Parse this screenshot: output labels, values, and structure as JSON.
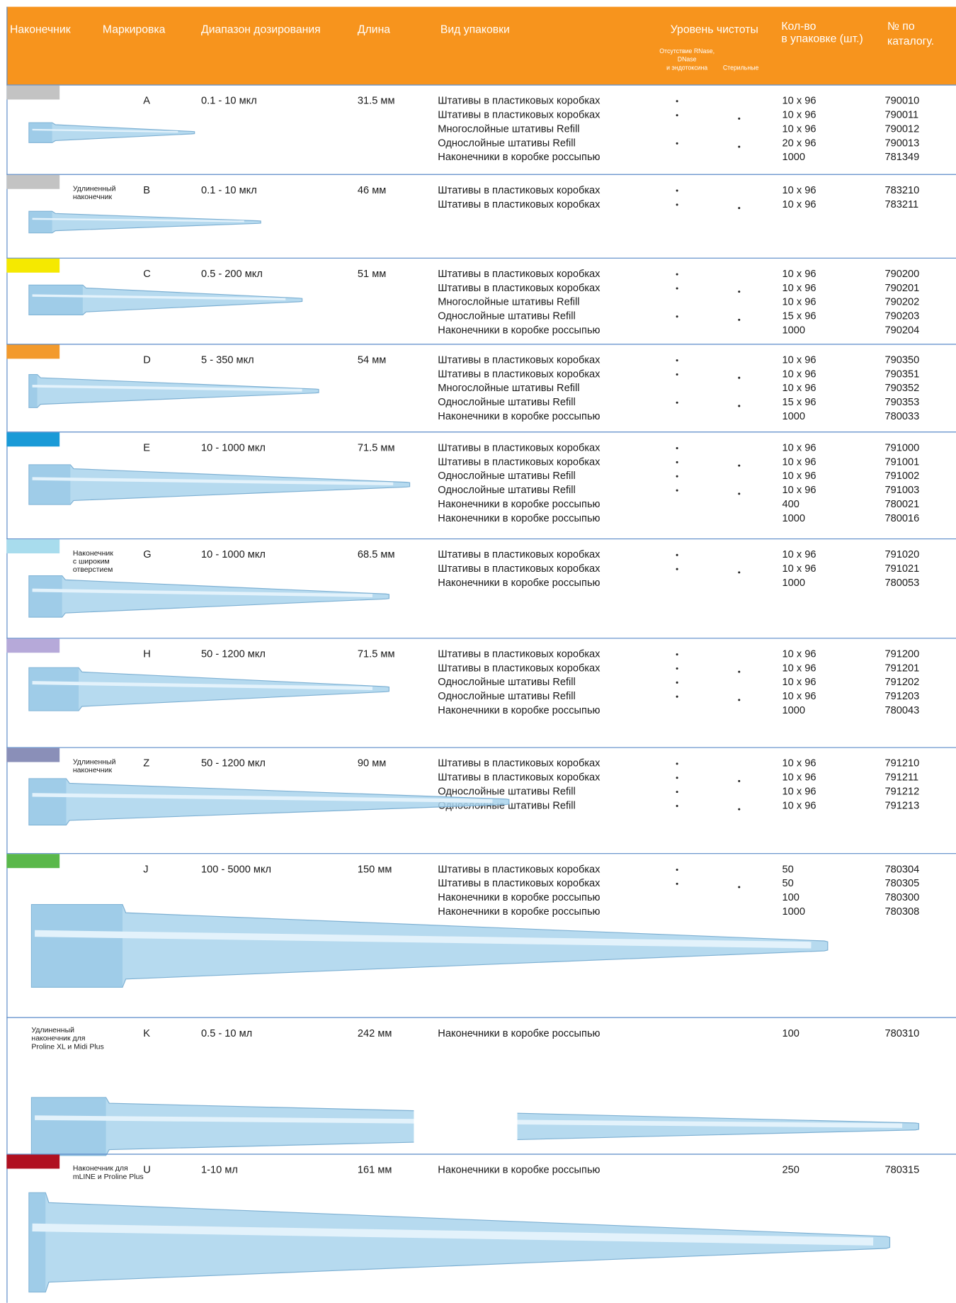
{
  "header": {
    "tip": "Наконечник",
    "marking": "Маркировка",
    "range": "Диапазон дозирования",
    "length": "Длина",
    "package": "Вид упаковки",
    "purity": "Уровень чистоты",
    "rnase": [
      "Отсутствие RNase,",
      "DNase",
      "и эндотоксина"
    ],
    "sterile": "Стерильные",
    "qty": [
      "Кол-во",
      "в упаковке (шт.)"
    ],
    "catalog": [
      "№ по",
      "каталогу."
    ]
  },
  "rows": [
    {
      "color": "#c3c3c3",
      "note": [],
      "marking": "A",
      "range": "0.1 - 10 мкл",
      "length": "31.5 мм",
      "items": [
        {
          "package": "Штативы в пластиковых коробках",
          "rnase": true,
          "sterile": false,
          "qty": "10 x 96",
          "catalog": "790010"
        },
        {
          "package": "Штативы в пластиковых коробках",
          "rnase": true,
          "sterile": true,
          "qty": "10 x 96",
          "catalog": "790011"
        },
        {
          "package": "Многослойные штативы Refill",
          "rnase": false,
          "sterile": false,
          "qty": "10 x 96",
          "catalog": "790012"
        },
        {
          "package": "Однослойные штативы Refill",
          "rnase": true,
          "sterile": true,
          "qty": "20 x 96",
          "catalog": "790013"
        },
        {
          "package": "Наконечники в коробке россыпью",
          "rnase": false,
          "sterile": false,
          "qty": "1000",
          "catalog": "781349"
        }
      ]
    },
    {
      "color": "#c3c3c3",
      "note": [
        "Удлиненный",
        "наконечник"
      ],
      "marking": "B",
      "range": "0.1 - 10 мкл",
      "length": "46 мм",
      "items": [
        {
          "package": "Штативы в пластиковых коробках",
          "rnase": true,
          "sterile": false,
          "qty": "10 x 96",
          "catalog": "783210"
        },
        {
          "package": "Штативы в пластиковых коробках",
          "rnase": true,
          "sterile": true,
          "qty": "10 x 96",
          "catalog": "783211"
        }
      ]
    },
    {
      "color": "#f5e900",
      "note": [],
      "marking": "C",
      "range": "0.5 - 200 мкл",
      "length": "51 мм",
      "items": [
        {
          "package": "Штативы в пластиковых коробках",
          "rnase": true,
          "sterile": false,
          "qty": "10 x 96",
          "catalog": "790200"
        },
        {
          "package": "Штативы в пластиковых коробках",
          "rnase": true,
          "sterile": true,
          "qty": "10 x 96",
          "catalog": "790201"
        },
        {
          "package": "Многослойные штативы Refill",
          "rnase": false,
          "sterile": false,
          "qty": "10 x 96",
          "catalog": "790202"
        },
        {
          "package": "Однослойные штативы Refill",
          "rnase": true,
          "sterile": true,
          "qty": "15 x 96",
          "catalog": "790203"
        },
        {
          "package": "Наконечники в коробке россыпью",
          "rnase": false,
          "sterile": false,
          "qty": "1000",
          "catalog": "790204"
        }
      ]
    },
    {
      "color": "#f39a2c",
      "note": [],
      "marking": "D",
      "range": "5 - 350 мкл",
      "length": "54 мм",
      "items": [
        {
          "package": "Штативы в пластиковых коробках",
          "rnase": true,
          "sterile": false,
          "qty": "10 x 96",
          "catalog": "790350"
        },
        {
          "package": "Штативы в пластиковых коробках",
          "rnase": true,
          "sterile": true,
          "qty": "10 x 96",
          "catalog": "790351"
        },
        {
          "package": "Многослойные штативы Refill",
          "rnase": false,
          "sterile": false,
          "qty": "10 x 96",
          "catalog": "790352"
        },
        {
          "package": "Однослойные штативы Refill",
          "rnase": true,
          "sterile": true,
          "qty": "15 x 96",
          "catalog": "790353"
        },
        {
          "package": "Наконечники в коробке россыпью",
          "rnase": false,
          "sterile": false,
          "qty": "1000",
          "catalog": "780033"
        }
      ]
    },
    {
      "color": "#1a9ad7",
      "note": [],
      "marking": "E",
      "range": "10 - 1000 мкл",
      "length": "71.5 мм",
      "items": [
        {
          "package": "Штативы в пластиковых коробках",
          "rnase": true,
          "sterile": false,
          "qty": "10 x 96",
          "catalog": "791000"
        },
        {
          "package": "Штативы в пластиковых коробках",
          "rnase": true,
          "sterile": true,
          "qty": "10 x 96",
          "catalog": "791001"
        },
        {
          "package": "Однослойные штативы Refill",
          "rnase": true,
          "sterile": false,
          "qty": "10 x 96",
          "catalog": "791002"
        },
        {
          "package": "Однослойные штативы Refill",
          "rnase": true,
          "sterile": true,
          "qty": "10 x 96",
          "catalog": "791003"
        },
        {
          "package": "Наконечники в коробке россыпью",
          "rnase": false,
          "sterile": false,
          "qty": "400",
          "catalog": "780021"
        },
        {
          "package": "Наконечники в коробке россыпью",
          "rnase": false,
          "sterile": false,
          "qty": "1000",
          "catalog": "780016"
        }
      ]
    },
    {
      "color": "#a8dced",
      "note": [
        "Наконечник",
        "с широким",
        "отверстием"
      ],
      "marking": "G",
      "range": "10 - 1000 мкл",
      "length": "68.5 мм",
      "items": [
        {
          "package": "Штативы в пластиковых коробках",
          "rnase": true,
          "sterile": false,
          "qty": "10 x 96",
          "catalog": "791020"
        },
        {
          "package": "Штативы в пластиковых коробках",
          "rnase": true,
          "sterile": true,
          "qty": "10 x 96",
          "catalog": "791021"
        },
        {
          "package": "Наконечники в коробке россыпью",
          "rnase": false,
          "sterile": false,
          "qty": "1000",
          "catalog": "780053"
        }
      ]
    },
    {
      "color": "#b6a9d9",
      "note": [],
      "marking": "H",
      "range": "50 - 1200 мкл",
      "length": "71.5 мм",
      "items": [
        {
          "package": "Штативы в пластиковых коробках",
          "rnase": true,
          "sterile": false,
          "qty": "10 x 96",
          "catalog": "791200"
        },
        {
          "package": "Штативы в пластиковых коробках",
          "rnase": true,
          "sterile": true,
          "qty": "10 x 96",
          "catalog": "791201"
        },
        {
          "package": "Однослойные штативы Refill",
          "rnase": true,
          "sterile": false,
          "qty": "10 x 96",
          "catalog": "791202"
        },
        {
          "package": "Однослойные штативы Refill",
          "rnase": true,
          "sterile": true,
          "qty": "10 x 96",
          "catalog": "791203"
        },
        {
          "package": "Наконечники в коробке россыпью",
          "rnase": false,
          "sterile": false,
          "qty": "1000",
          "catalog": "780043"
        }
      ]
    },
    {
      "color": "#8a8fb8",
      "note": [
        "Удлиненный",
        "наконечник"
      ],
      "marking": "Z",
      "range": "50 - 1200 мкл",
      "length": "90 мм",
      "items": [
        {
          "package": "Штативы в пластиковых коробках",
          "rnase": true,
          "sterile": false,
          "qty": "10 x 96",
          "catalog": "791210"
        },
        {
          "package": "Штативы в пластиковых коробках",
          "rnase": true,
          "sterile": true,
          "qty": "10 x 96",
          "catalog": "791211"
        },
        {
          "package": "Однослойные штативы Refill",
          "rnase": true,
          "sterile": false,
          "qty": "10 x 96",
          "catalog": "791212"
        },
        {
          "package": "Однослойные штативы Refill",
          "rnase": true,
          "sterile": true,
          "qty": "10 x 96",
          "catalog": "791213"
        }
      ]
    },
    {
      "color": "#5ab84a",
      "note": [],
      "marking": "J",
      "range": "100 - 5000 мкл",
      "length": "150 мм",
      "items": [
        {
          "package": "Штативы в пластиковых коробках",
          "rnase": true,
          "sterile": false,
          "qty": "50",
          "catalog": "780304"
        },
        {
          "package": "Штативы в пластиковых коробках",
          "rnase": true,
          "sterile": true,
          "qty": "50",
          "catalog": "780305"
        },
        {
          "package": "Наконечники в коробке россыпью",
          "rnase": false,
          "sterile": false,
          "qty": "100",
          "catalog": "780300"
        },
        {
          "package": "Наконечники в коробке россыпью",
          "rnase": false,
          "sterile": false,
          "qty": "1000",
          "catalog": "780308"
        }
      ]
    },
    {
      "color": null,
      "note": [
        "Удлиненный",
        "наконечник для",
        "Proline XL и  Midi Plus"
      ],
      "marking": "K",
      "range": "0.5 - 10 мл",
      "length": "242 мм",
      "items": [
        {
          "package": "Наконечники в коробке россыпью",
          "rnase": false,
          "sterile": false,
          "qty": "100",
          "catalog": "780310"
        }
      ]
    },
    {
      "color": "#b01020",
      "note": [
        "Наконечник для",
        "mLINE и Proline Plus"
      ],
      "marking": "U",
      "range": "1-10 мл",
      "length": "161 мм",
      "items": [
        {
          "package": "Наконечники в коробке россыпью",
          "rnase": false,
          "sterile": false,
          "qty": "250",
          "catalog": "780315"
        }
      ]
    }
  ]
}
